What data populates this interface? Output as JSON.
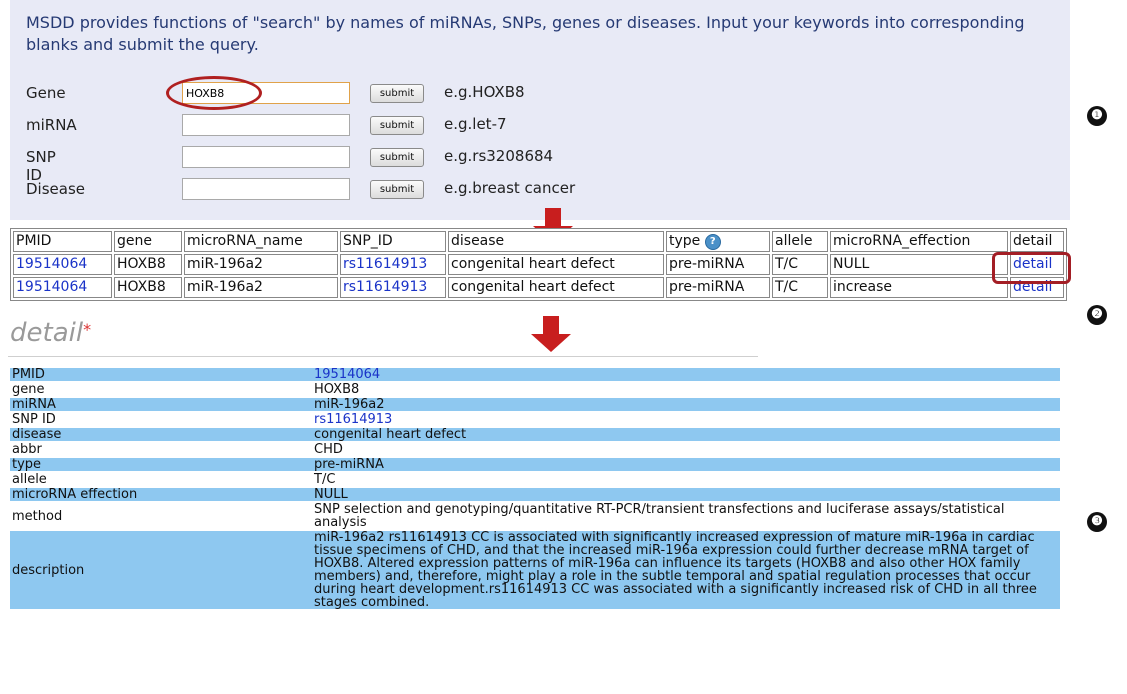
{
  "search": {
    "intro": "MSDD provides functions of \"search\" by names of miRNAs, SNPs, genes or diseases. Input your keywords into corresponding blanks and submit the query.",
    "rows": [
      {
        "label": "Gene",
        "value": "HOXB8",
        "button": "submit",
        "example": "e.g.HOXB8"
      },
      {
        "label": "miRNA",
        "value": "",
        "button": "submit",
        "example": "e.g.let-7"
      },
      {
        "label": "SNP ID",
        "value": "",
        "button": "submit",
        "example": "e.g.rs3208684"
      },
      {
        "label": "Disease",
        "value": "",
        "button": "submit",
        "example": "e.g.breast cancer"
      }
    ]
  },
  "markers": [
    "❶",
    "❷",
    "❸"
  ],
  "results": {
    "headers": [
      "PMID",
      "gene",
      "microRNA_name",
      "SNP_ID",
      "disease",
      "type",
      "allele",
      "microRNA_effection",
      "detail"
    ],
    "help_icon": "?",
    "rows": [
      [
        "19514064",
        "HOXB8",
        "miR-196a2",
        "rs11614913",
        "congenital heart defect",
        "pre-miRNA",
        "T/C",
        "NULL",
        "detail"
      ],
      [
        "19514064",
        "HOXB8",
        "miR-196a2",
        "rs11614913",
        "congenital heart defect",
        "pre-miRNA",
        "T/C",
        "increase",
        "detail"
      ]
    ]
  },
  "detail": {
    "heading": "detail",
    "star": "*",
    "rows": [
      [
        "PMID",
        "19514064"
      ],
      [
        "gene",
        "HOXB8"
      ],
      [
        "miRNA",
        "miR-196a2"
      ],
      [
        "SNP ID",
        "rs11614913"
      ],
      [
        "disease",
        "congenital heart defect"
      ],
      [
        "abbr",
        "CHD"
      ],
      [
        "type",
        "pre-miRNA"
      ],
      [
        "allele",
        "T/C"
      ],
      [
        "microRNA effection",
        "NULL"
      ],
      [
        "method",
        "SNP selection and genotyping/quantitative RT-PCR/transient transfections and luciferase assays/statistical analysis"
      ],
      [
        "description",
        "miR-196a2 rs11614913 CC is associated with significantly increased expression of mature miR-196a in cardiac tissue specimens of CHD, and that the increased miR-196a expression could further decrease mRNA target of HOXB8. Altered expression patterns of miR-196a can influence its targets (HOXB8 and also other HOX family members) and, therefore, might play a role in the subtle temporal and spatial regulation processes that occur during heart development.rs11614913 CC was associated with a significantly increased risk of CHD in all three stages combined."
      ]
    ]
  },
  "colors": {
    "panel": "#e8eaf6",
    "highlight": "#8ec8f0",
    "link": "#1a33c8",
    "annotation": "#c81e1e"
  }
}
